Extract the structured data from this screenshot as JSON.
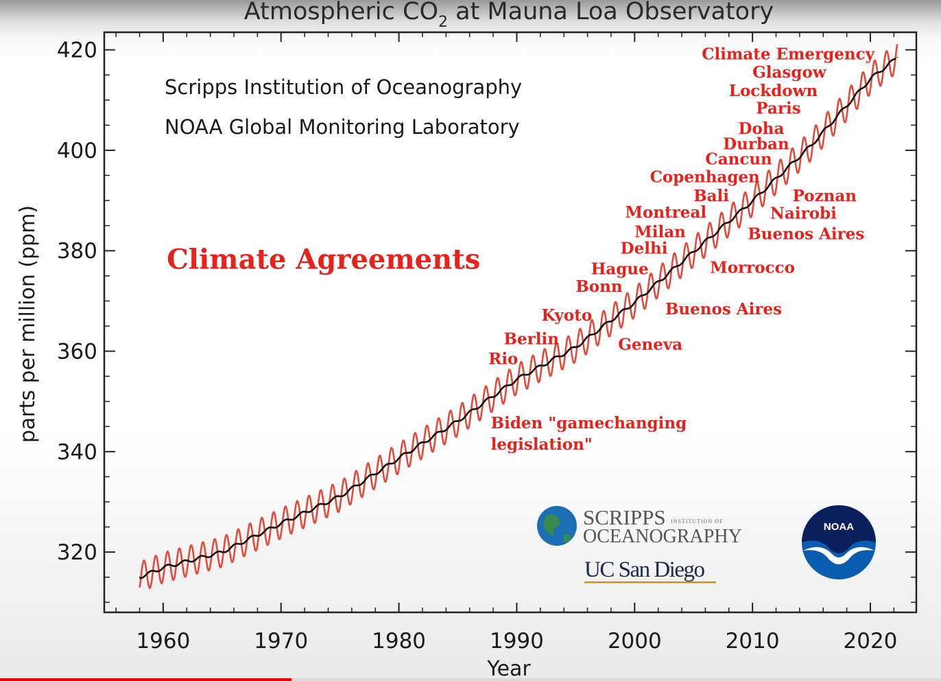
{
  "colors": {
    "annotation": "#e8221b",
    "seasonal_line": "#e34a3a",
    "trend_line": "#111111",
    "frame": "#222222",
    "scripps_globe": "#1d6fb5",
    "noaa_blue": "#0a5cb0",
    "noaa_navy": "#0b1f5c",
    "ucsd_navy": "#182b49",
    "ucsd_gold": "#c69214",
    "progress": "#e00000"
  },
  "chart_data": {
    "type": "line",
    "title": "Atmospheric CO",
    "title_subscript": "2",
    "title_suffix": " at Mauna Loa Observatory",
    "xlabel": "Year",
    "ylabel": "parts per million (ppm)",
    "xlim": [
      1955,
      2023.9
    ],
    "ylim": [
      308,
      423.5
    ],
    "xticks": [
      1960,
      1970,
      1980,
      1990,
      2000,
      2010,
      2020
    ],
    "yticks": [
      320,
      340,
      360,
      380,
      400,
      420
    ],
    "grid": false,
    "credits": [
      "Scripps Institution of Oceanography",
      "NOAA Global Monitoring Laboratory"
    ],
    "seasonal_amplitude_ppm": 3,
    "series": [
      {
        "role": "monthly",
        "style": "seasonal",
        "x": [
          1958,
          1960,
          1965,
          1970,
          1975,
          1980,
          1985,
          1990,
          1995,
          2000,
          2005,
          2010,
          2015,
          2020,
          2022.3
        ],
        "y": [
          315.0,
          316.9,
          320.0,
          325.7,
          331.1,
          338.7,
          346.1,
          354.4,
          360.8,
          369.7,
          379.8,
          389.9,
          401.0,
          414.2,
          418.5
        ]
      },
      {
        "role": "trend",
        "style": "smooth",
        "x": [
          1958,
          1960,
          1965,
          1970,
          1975,
          1980,
          1985,
          1990,
          1995,
          2000,
          2005,
          2010,
          2015,
          2020,
          2022.3
        ],
        "y": [
          315.0,
          316.9,
          320.0,
          325.7,
          331.1,
          338.7,
          346.1,
          354.4,
          360.8,
          369.7,
          379.8,
          389.9,
          401.0,
          414.2,
          418.5
        ]
      }
    ],
    "annotations": [
      {
        "text": "Climate Agreements",
        "x": 1960.3,
        "y": 376.4,
        "size": "large"
      },
      {
        "text": "Climate Emergency",
        "x": 2005.7,
        "y": 418.1
      },
      {
        "text": "Glasgow",
        "x": 2010.0,
        "y": 414.5
      },
      {
        "text": "Lockdown",
        "x": 2008.0,
        "y": 410.8
      },
      {
        "text": "Paris",
        "x": 2010.3,
        "y": 407.3
      },
      {
        "text": "Doha",
        "x": 2008.8,
        "y": 403.3
      },
      {
        "text": "Durban",
        "x": 2007.5,
        "y": 400.2
      },
      {
        "text": "Cancun",
        "x": 2006.0,
        "y": 397.2
      },
      {
        "text": "Copenhagen",
        "x": 2001.3,
        "y": 393.6
      },
      {
        "text": "Bali",
        "x": 2005.0,
        "y": 389.9
      },
      {
        "text": "Poznan",
        "x": 2013.4,
        "y": 389.9
      },
      {
        "text": "Montreal",
        "x": 1999.2,
        "y": 386.6
      },
      {
        "text": "Nairobi",
        "x": 2011.5,
        "y": 386.4
      },
      {
        "text": "Milan",
        "x": 2000.0,
        "y": 382.7
      },
      {
        "text": "Buenos Aires",
        "x": 2009.6,
        "y": 382.3
      },
      {
        "text": "Delhi",
        "x": 1998.8,
        "y": 379.4
      },
      {
        "text": "Hague",
        "x": 1996.3,
        "y": 375.3
      },
      {
        "text": "Morrocco",
        "x": 2006.4,
        "y": 375.6
      },
      {
        "text": "Bonn",
        "x": 1995.0,
        "y": 371.8
      },
      {
        "text": "Kyoto",
        "x": 1992.1,
        "y": 366.1
      },
      {
        "text": "Buenos Aires",
        "x": 2002.6,
        "y": 367.3
      },
      {
        "text": "Berlin",
        "x": 1988.9,
        "y": 361.4
      },
      {
        "text": "Geneva",
        "x": 1998.6,
        "y": 360.3
      },
      {
        "text": "Rio",
        "x": 1987.6,
        "y": 357.4
      },
      {
        "text": "Biden \"gamechanging",
        "x": 1987.8,
        "y": 344.6
      },
      {
        "text": "legislation\"",
        "x": 1987.8,
        "y": 340.4
      }
    ]
  },
  "logos": {
    "scripps": {
      "line1": "SCRIPPS",
      "line1_small": "INSTITUTION OF",
      "line2": "OCEANOGRAPHY"
    },
    "ucsd": {
      "text": "UC San Diego"
    },
    "noaa": {
      "text": "NOAA"
    }
  },
  "video": {
    "progress_fraction": 0.31
  }
}
